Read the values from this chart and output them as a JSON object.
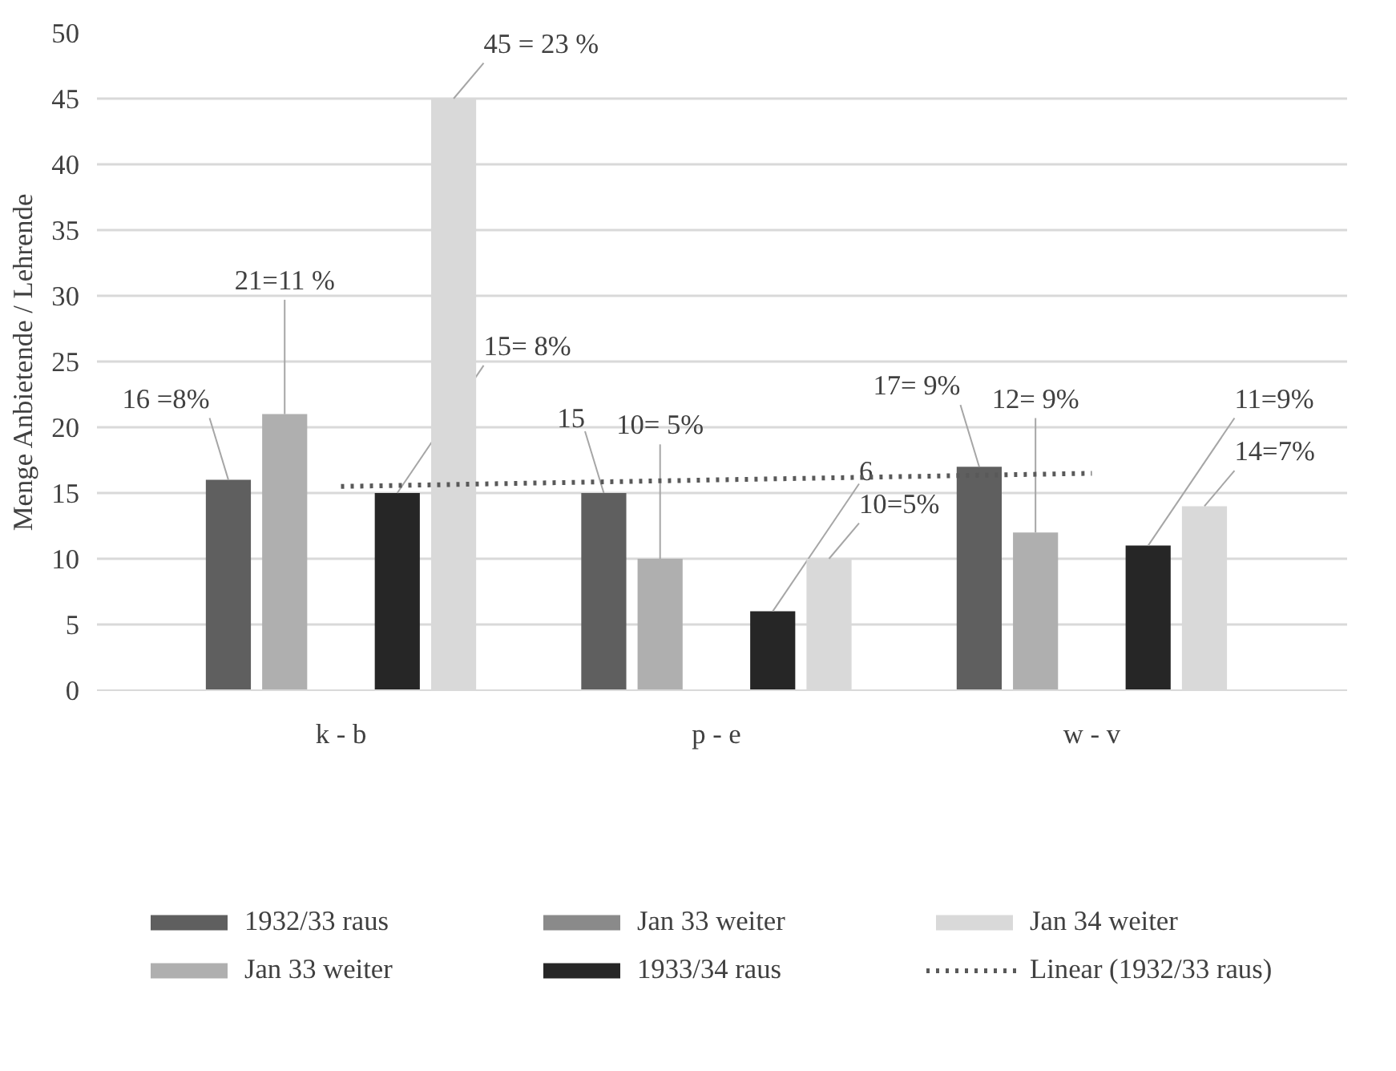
{
  "chart_data": {
    "type": "bar",
    "ylabel": "Menge Anbietende / Lehrende",
    "categories": [
      "k - b",
      "p - e",
      "w - v"
    ],
    "series": [
      {
        "name": "1932/33 raus",
        "color": "#5f5f5f",
        "values": [
          16,
          15,
          17
        ],
        "value_labels": [
          "16 =8%",
          "15",
          "17= 9%"
        ]
      },
      {
        "name": "Jan 33 weiter",
        "color": "#afafaf",
        "values": [
          21,
          10,
          12
        ],
        "value_labels": [
          "21=11 %",
          "10= 5%",
          "12= 9%"
        ]
      },
      {
        "name": "Jan 33 weiter",
        "color": "#8a8a8a",
        "values": [
          null,
          null,
          null
        ]
      },
      {
        "name": "1933/34 raus",
        "color": "#262626",
        "values": [
          15,
          6,
          11
        ],
        "value_labels": [
          "15= 8%",
          "6",
          "11=9%"
        ]
      },
      {
        "name": "Jan 34 weiter",
        "color": "#d9d9d9",
        "values": [
          45,
          10,
          14
        ],
        "value_labels": [
          "45 = 23 %",
          "10=5%",
          "14=7%"
        ]
      },
      {
        "name": "Linear (1932/33 raus)",
        "type": "line",
        "color": "#595959",
        "line_style": "dotted",
        "x": [
          "k - b",
          "p - e",
          "w - v"
        ],
        "values": [
          15.5,
          16,
          16.5
        ]
      }
    ],
    "ylim": [
      0,
      50
    ],
    "yticks": [
      0,
      5,
      10,
      15,
      20,
      25,
      30,
      35,
      40,
      45,
      50
    ],
    "grid": "y",
    "legend": "bottom"
  }
}
